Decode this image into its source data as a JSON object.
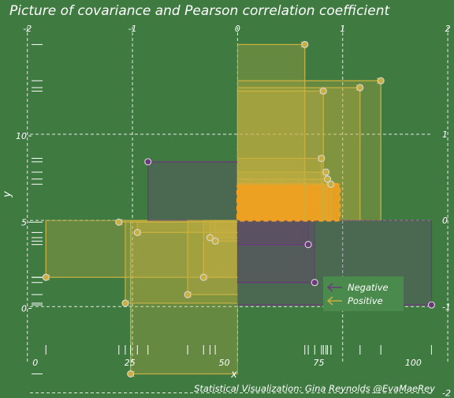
{
  "chart_data": {
    "type": "scatter",
    "title": "Picture of covariance and Pearson correlation coefficient",
    "caption": "Statistical Visualization: Gina Reynolds @EvaMaeRey",
    "xlabel": "x",
    "ylabel": "y",
    "xlim": [
      -1,
      107
    ],
    "ylim": [
      -3.0,
      16.6
    ],
    "x_ticks": [
      0,
      25,
      50,
      75,
      100
    ],
    "y_ticks": [
      0,
      5,
      10
    ],
    "x_std_ticks": [
      {
        "value": -2,
        "label": "-2"
      },
      {
        "value": -1,
        "label": "-1"
      },
      {
        "value": 0,
        "label": "0"
      },
      {
        "value": 1,
        "label": "1"
      },
      {
        "value": 2,
        "label": "2"
      }
    ],
    "y_std_ticks": [
      {
        "value": -2,
        "label": "-2"
      },
      {
        "value": -1,
        "label": "-1"
      },
      {
        "value": 0,
        "label": "0"
      },
      {
        "value": 1,
        "label": "1"
      }
    ],
    "x_mean": 53.5,
    "x_sd": 27.8,
    "y_mean": 5.1,
    "y_sd": 5.0,
    "mean_box": {
      "x": [
        53.5,
        80.5
      ],
      "y": [
        5.1,
        7.2
      ]
    },
    "colors": {
      "background": "#3f7a41",
      "negative": "#6b3a7a",
      "positive": "#c8b040",
      "mean_box": "#f0a020"
    },
    "legend": {
      "position": "bottom-right",
      "entries": [
        "Negative",
        "Positive"
      ]
    },
    "points": [
      {
        "x": 2.8,
        "y": 1.8
      },
      {
        "x": 22.1,
        "y": 5.0
      },
      {
        "x": 23.8,
        "y": 0.3
      },
      {
        "x": 25.2,
        "y": -3.8
      },
      {
        "x": 27.0,
        "y": 4.4
      },
      {
        "x": 29.8,
        "y": 8.5
      },
      {
        "x": 40.3,
        "y": 0.8
      },
      {
        "x": 44.5,
        "y": 1.8
      },
      {
        "x": 46.2,
        "y": 4.1
      },
      {
        "x": 47.6,
        "y": 3.9
      },
      {
        "x": 71.3,
        "y": 15.3
      },
      {
        "x": 72.2,
        "y": 3.7
      },
      {
        "x": 73.9,
        "y": 1.5
      },
      {
        "x": 75.7,
        "y": 8.7
      },
      {
        "x": 76.2,
        "y": 12.6
      },
      {
        "x": 76.9,
        "y": 7.9
      },
      {
        "x": 77.3,
        "y": 7.5
      },
      {
        "x": 78.2,
        "y": 7.2
      },
      {
        "x": 85.9,
        "y": 12.8
      },
      {
        "x": 91.4,
        "y": 13.2
      },
      {
        "x": 104.8,
        "y": 0.2
      }
    ]
  }
}
